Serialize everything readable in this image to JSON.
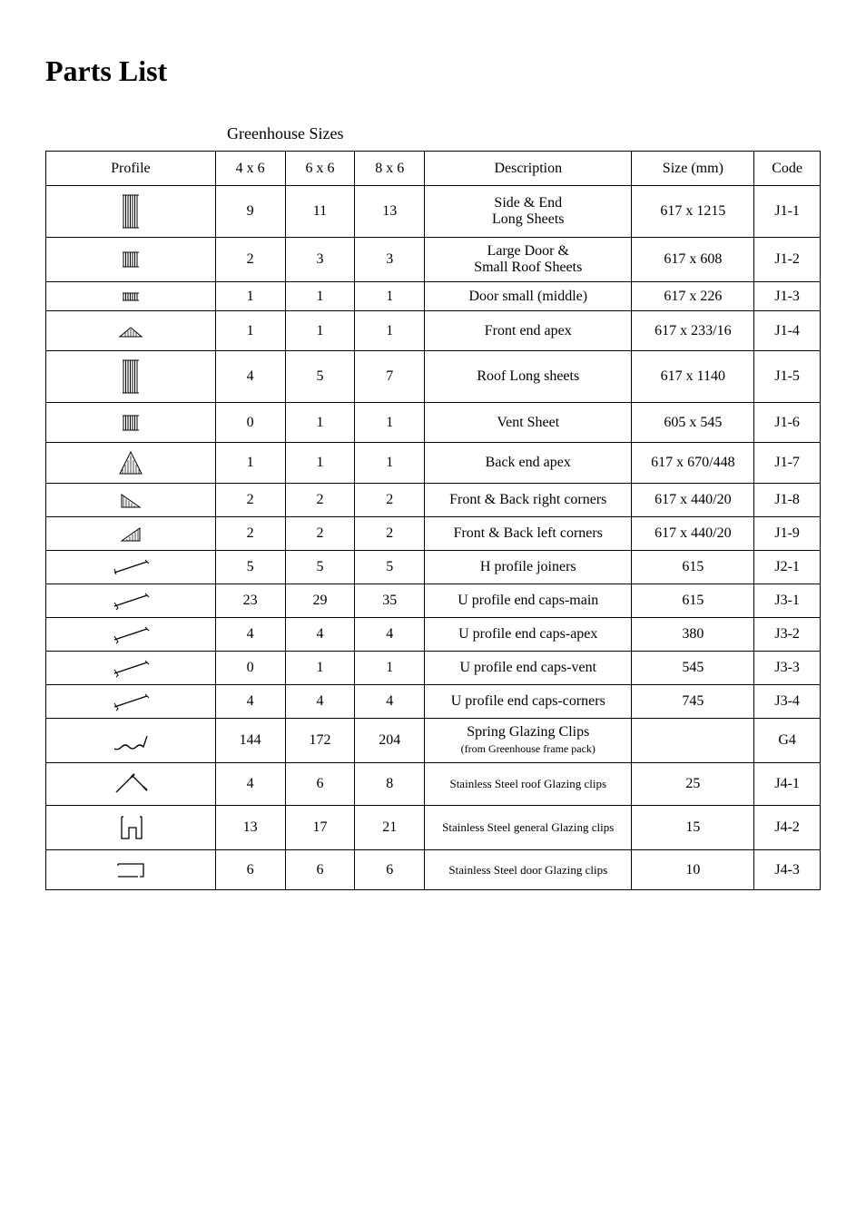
{
  "title": "Parts List",
  "subheader": "Greenhouse Sizes",
  "headers": {
    "profile": "Profile",
    "s4x6": "4 x 6",
    "s6x6": "6 x 6",
    "s8x6": "8 x 6",
    "description": "Description",
    "size": "Size (mm)",
    "code": "Code"
  },
  "rows": [
    {
      "q4": "9",
      "q6": "11",
      "q8": "13",
      "desc": "Side & End\nLong Sheets",
      "size": "617 x 1215",
      "code": "J1-1",
      "icon": "tall-lines",
      "height": "tall"
    },
    {
      "q4": "2",
      "q6": "3",
      "q8": "3",
      "desc": "Large Door &\nSmall Roof Sheets",
      "size": "617 x 608",
      "code": "J1-2",
      "icon": "short-lines",
      "height": "med"
    },
    {
      "q4": "1",
      "q6": "1",
      "q8": "1",
      "desc": "Door small (middle)",
      "size": "617 x 226",
      "code": "J1-3",
      "icon": "thin-lines",
      "height": "short"
    },
    {
      "q4": "1",
      "q6": "1",
      "q8": "1",
      "desc": "Front end apex",
      "size": "617 x 233/16",
      "code": "J1-4",
      "icon": "apex-short",
      "height": "med"
    },
    {
      "q4": "4",
      "q6": "5",
      "q8": "7",
      "desc": "Roof Long sheets",
      "size": "617 x 1140",
      "code": "J1-5",
      "icon": "tall-lines",
      "height": "tall"
    },
    {
      "q4": "0",
      "q6": "1",
      "q8": "1",
      "desc": "Vent Sheet",
      "size": "605 x 545",
      "code": "J1-6",
      "icon": "short-lines",
      "height": "med"
    },
    {
      "q4": "1",
      "q6": "1",
      "q8": "1",
      "desc": "Back end apex",
      "size": "617 x 670/448",
      "code": "J1-7",
      "icon": "apex-tall",
      "height": "med"
    },
    {
      "q4": "2",
      "q6": "2",
      "q8": "2",
      "desc": "Front & Back right corners",
      "size": "617 x 440/20",
      "code": "J1-8",
      "icon": "triangle-right",
      "height": "short"
    },
    {
      "q4": "2",
      "q6": "2",
      "q8": "2",
      "desc": "Front & Back left corners",
      "size": "617 x 440/20",
      "code": "J1-9",
      "icon": "triangle-left",
      "height": "short"
    },
    {
      "q4": "5",
      "q6": "5",
      "q8": "5",
      "desc": "H profile joiners",
      "size": "615",
      "code": "J2-1",
      "icon": "h-profile",
      "height": "short"
    },
    {
      "q4": "23",
      "q6": "29",
      "q8": "35",
      "desc": "U profile end caps-main",
      "size": "615",
      "code": "J3-1",
      "icon": "u-profile",
      "height": "short"
    },
    {
      "q4": "4",
      "q6": "4",
      "q8": "4",
      "desc": "U profile end caps-apex",
      "size": "380",
      "code": "J3-2",
      "icon": "u-profile",
      "height": "short"
    },
    {
      "q4": "0",
      "q6": "1",
      "q8": "1",
      "desc": "U profile end caps-vent",
      "size": "545",
      "code": "J3-3",
      "icon": "u-profile",
      "height": "short"
    },
    {
      "q4": "4",
      "q6": "4",
      "q8": "4",
      "desc": "U profile end caps-corners",
      "size": "745",
      "code": "J3-4",
      "icon": "u-profile",
      "height": "short"
    },
    {
      "q4": "144",
      "q6": "172",
      "q8": "204",
      "desc": "Spring Glazing Clips",
      "subdesc": "(from Greenhouse frame pack)",
      "size": "",
      "code": "G4",
      "icon": "spring-clip",
      "height": "med"
    },
    {
      "q4": "4",
      "q6": "6",
      "q8": "8",
      "desc": "Stainless Steel roof Glazing clips",
      "size": "25",
      "code": "J4-1",
      "icon": "roof-clip",
      "height": "med",
      "smallDesc": true
    },
    {
      "q4": "13",
      "q6": "17",
      "q8": "21",
      "desc": "Stainless Steel general Glazing clips",
      "size": "15",
      "code": "J4-2",
      "icon": "general-clip",
      "height": "med",
      "smallDesc": true
    },
    {
      "q4": "6",
      "q6": "6",
      "q8": "6",
      "desc": "Stainless Steel door Glazing clips",
      "size": "10",
      "code": "J4-3",
      "icon": "door-clip",
      "height": "med",
      "smallDesc": true
    }
  ],
  "colors": {
    "border": "#000000",
    "text": "#000000",
    "background": "#ffffff"
  }
}
